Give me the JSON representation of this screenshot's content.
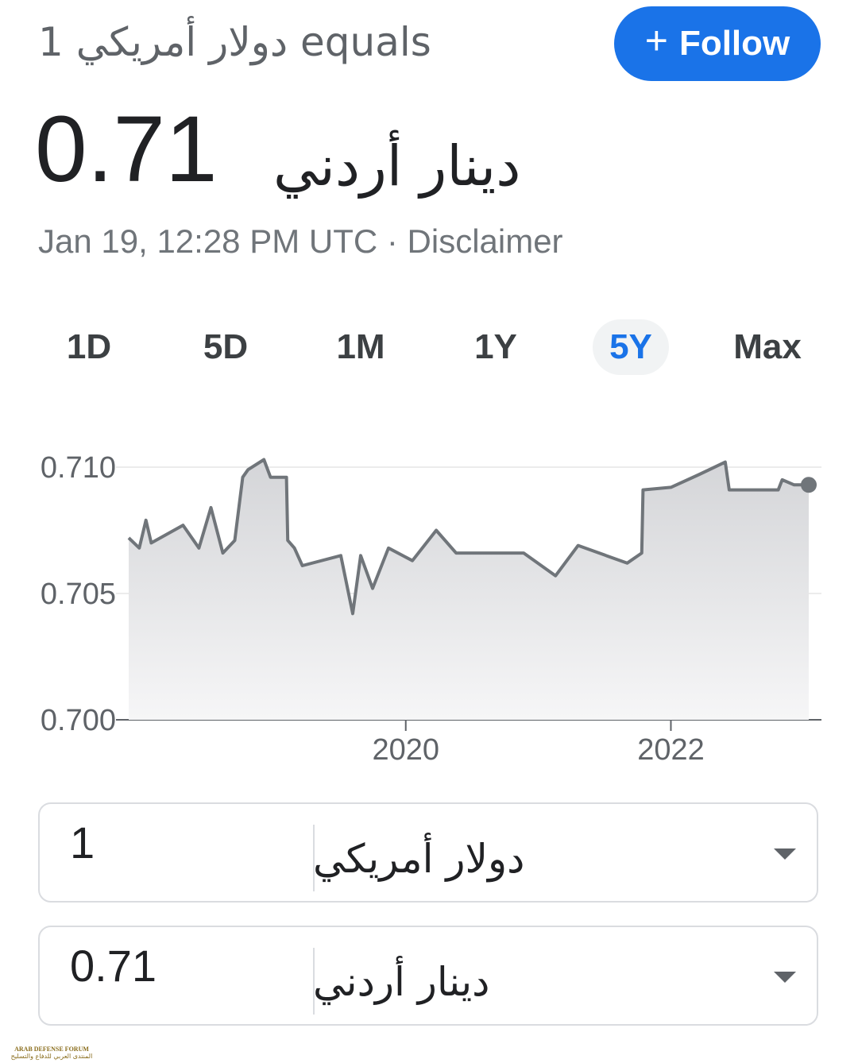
{
  "header": {
    "title": "1 دولار أمريكي equals",
    "follow": "Follow",
    "value": "0.71",
    "unit": "دينار أردني",
    "timestamp": "Jan 19, 12:28 PM UTC · ",
    "disclaimer": "Disclaimer"
  },
  "tabs": [
    "1D",
    "5D",
    "1M",
    "1Y",
    "5Y",
    "Max"
  ],
  "selected_tab": 4,
  "chart_data": {
    "type": "area",
    "x": [
      2017.91,
      2017.99,
      2018.04,
      2018.08,
      2018.32,
      2018.44,
      2018.53,
      2018.62,
      2018.71,
      2018.77,
      2018.81,
      2018.93,
      2018.98,
      2019.1,
      2019.11,
      2019.16,
      2019.22,
      2019.51,
      2019.6,
      2019.66,
      2019.75,
      2019.87,
      2020.05,
      2020.23,
      2020.38,
      2020.89,
      2021.13,
      2021.3,
      2021.67,
      2021.78,
      2021.79,
      2022.0,
      2022.21,
      2022.41,
      2022.44,
      2022.81,
      2022.84,
      2022.93,
      2023.04
    ],
    "series": [
      {
        "color": "#70757a",
        "values": [
          0.7072,
          0.7068,
          0.7079,
          0.707,
          0.7077,
          0.7068,
          0.7084,
          0.7066,
          0.7071,
          0.7096,
          0.7099,
          0.7103,
          0.7096,
          0.7096,
          0.7071,
          0.7068,
          0.7061,
          0.7065,
          0.7042,
          0.7065,
          0.7052,
          0.7068,
          0.7063,
          0.7075,
          0.7066,
          0.7066,
          0.7057,
          0.7069,
          0.7062,
          0.7066,
          0.7091,
          0.7092,
          0.7097,
          0.7102,
          0.7091,
          0.7091,
          0.7095,
          0.7093,
          0.7093
        ]
      }
    ],
    "xlim": [
      2017.91,
      2023.04
    ],
    "xticks": [
      2020,
      2022
    ],
    "ylim": [
      0.7,
      0.7105
    ],
    "yticks": [
      {
        "value": 0.7,
        "label": "0.700"
      },
      0.705,
      {
        "value": 0.71,
        "label": "0.710"
      }
    ],
    "grid": true
  },
  "converter": [
    {
      "amount": "1",
      "currency": "دولار أمريكي"
    },
    {
      "amount": "0.71",
      "currency": "دينار أردني"
    }
  ],
  "watermark": {
    "name": "ARAB DEFENSE FORUM",
    "arabic": "المنتدى العربي للدفاع والتسليح"
  }
}
